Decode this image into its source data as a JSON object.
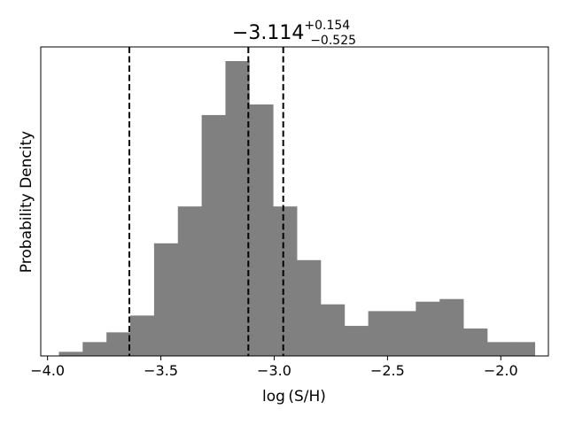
{
  "chart_data": {
    "type": "bar",
    "title": {
      "median": "−3.114",
      "upper": "+0.154",
      "lower": "−0.525"
    },
    "xlabel": "log (S/H)",
    "ylabel": "Probability Dencity",
    "xlim": [
      -4.03,
      -1.79
    ],
    "ylim": [
      0,
      1.0
    ],
    "bin_width": 0.105,
    "bins": [
      {
        "left": -3.95,
        "value": 0.014
      },
      {
        "left": -3.845,
        "value": 0.047
      },
      {
        "left": -3.74,
        "value": 0.08
      },
      {
        "left": -3.635,
        "value": 0.137
      },
      {
        "left": -3.53,
        "value": 0.382
      },
      {
        "left": -3.425,
        "value": 0.507
      },
      {
        "left": -3.32,
        "value": 0.817
      },
      {
        "left": -3.215,
        "value": 1.0
      },
      {
        "left": -3.11,
        "value": 0.853
      },
      {
        "left": -3.005,
        "value": 0.507
      },
      {
        "left": -2.9,
        "value": 0.325
      },
      {
        "left": -2.795,
        "value": 0.175
      },
      {
        "left": -2.69,
        "value": 0.102
      },
      {
        "left": -2.585,
        "value": 0.152
      },
      {
        "left": -2.48,
        "value": 0.152
      },
      {
        "left": -2.375,
        "value": 0.184
      },
      {
        "left": -2.27,
        "value": 0.193
      },
      {
        "left": -2.165,
        "value": 0.093
      },
      {
        "left": -2.06,
        "value": 0.047
      },
      {
        "left": -1.955,
        "value": 0.047
      }
    ],
    "vlines": [
      -3.639,
      -3.114,
      -2.96
    ],
    "xticks": [
      -4.0,
      -3.5,
      -3.0,
      -2.5,
      -2.0
    ],
    "xtick_labels": [
      "−4.0",
      "−3.5",
      "−3.0",
      "−2.5",
      "−2.0"
    ],
    "grid": false,
    "bar_color": "#808080",
    "line_color": "#000000"
  }
}
